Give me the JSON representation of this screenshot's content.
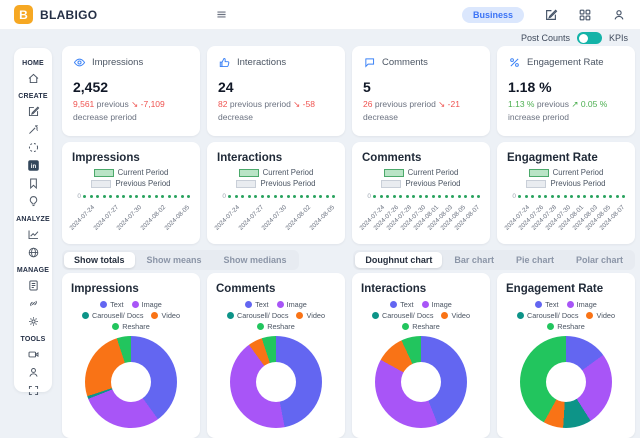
{
  "nav": {
    "logo_letter": "B",
    "brand": "BLABIGO",
    "business_label": "Business"
  },
  "subheader": {
    "left_label": "Post Counts",
    "right_label": "KPIs",
    "toggle_on": true
  },
  "sidebar": {
    "sections": [
      {
        "label": "HOME",
        "icons": [
          "home"
        ]
      },
      {
        "label": "CREATE",
        "icons": [
          "compose",
          "magic-wand",
          "dashed-circle",
          "linkedin",
          "bookmark",
          "lightbulb"
        ]
      },
      {
        "label": "ANALYZE",
        "icons": [
          "line-chart",
          "globe"
        ]
      },
      {
        "label": "MANAGE",
        "icons": [
          "id-card",
          "link",
          "gear"
        ]
      },
      {
        "label": "TOOLS",
        "icons": [
          "video-camera",
          "user",
          "expand"
        ]
      }
    ]
  },
  "colors": {
    "accent_blue": "#3b82f6",
    "negative_red": "#ef5350",
    "positive_green": "#4caf50",
    "toggle_teal": "#14b3a8",
    "logo_orange": "#f6a823"
  },
  "kpis": [
    {
      "title": "Impressions",
      "icon": "eye-icon",
      "value": "2,452",
      "prev_value": "9,561",
      "prev_label": "previous",
      "delta": "↘ -7,109",
      "delta_label": "decrease preriod",
      "trend": "down"
    },
    {
      "title": "Interactions",
      "icon": "thumb-up-icon",
      "value": "24",
      "prev_value": "82",
      "prev_label": "previous preriod",
      "delta": "↘ -58",
      "delta_label": "decrease",
      "trend": "down"
    },
    {
      "title": "Comments",
      "icon": "comments-icon",
      "value": "5",
      "prev_value": "26",
      "prev_label": "previous preriod",
      "delta": "↘ -21",
      "delta_label": "decrease",
      "trend": "down"
    },
    {
      "title": "Engagement Rate",
      "icon": "percent-icon",
      "value": "1.18 %",
      "prev_value": "1.13 %",
      "prev_label": "previous",
      "delta": "↗ 0.05 %",
      "delta_label": "increase preriod",
      "trend": "up"
    }
  ],
  "controls": {
    "left": [
      "Show totals",
      "Show means",
      "Show medians"
    ],
    "left_active": 0,
    "right": [
      "Doughnut chart",
      "Bar chart",
      "Pie chart",
      "Polar chart"
    ],
    "right_active": 0
  },
  "chart_data": [
    {
      "type": "line",
      "title": "Impressions",
      "y_tick": "0",
      "grid": false,
      "legend_position": "top",
      "x_ticks": [
        "2024-07-24",
        "2024-07-27",
        "2024-07-30",
        "2024-08-02",
        "2024-08-05"
      ],
      "dot_color": "#2aa35f",
      "series": [
        {
          "name": "Current Period",
          "fill": "#b9e4c6",
          "border": "#4ca96b",
          "values": [
            0,
            0,
            0,
            0,
            0,
            0,
            0,
            0,
            0,
            0,
            0,
            0,
            0,
            0,
            0,
            0,
            0
          ]
        },
        {
          "name": "Previous Period",
          "fill": "#e9ecf0",
          "border": "#c9cfd8",
          "values": [
            0,
            0,
            0,
            0,
            0,
            0,
            0,
            0,
            0,
            0,
            0,
            0,
            0,
            0,
            0,
            0,
            0
          ]
        }
      ]
    },
    {
      "type": "line",
      "title": "Interactions",
      "y_tick": "0",
      "grid": false,
      "legend_position": "top",
      "x_ticks": [
        "2024-07-24",
        "2024-07-27",
        "2024-07-30",
        "2024-08-02",
        "2024-08-05"
      ],
      "dot_color": "#2aa35f",
      "series": [
        {
          "name": "Current Period",
          "fill": "#b9e4c6",
          "border": "#4ca96b",
          "values": [
            0,
            0,
            0,
            0,
            0,
            0,
            0,
            0,
            0,
            0,
            0,
            0,
            0,
            0,
            0,
            0,
            0
          ]
        },
        {
          "name": "Previous Period",
          "fill": "#e9ecf0",
          "border": "#c9cfd8",
          "values": [
            0,
            0,
            0,
            0,
            0,
            0,
            0,
            0,
            0,
            0,
            0,
            0,
            0,
            0,
            0,
            0,
            0
          ]
        }
      ]
    },
    {
      "type": "line",
      "title": "Comments",
      "y_tick": "0",
      "grid": false,
      "legend_position": "top",
      "x_ticks": [
        "2024-07-24",
        "2024-07-26",
        "2024-07-28",
        "2024-07-30",
        "2024-08-01",
        "2024-08-03",
        "2024-08-05",
        "2024-08-07"
      ],
      "dot_color": "#2aa35f",
      "series": [
        {
          "name": "Current Period",
          "fill": "#b9e4c6",
          "border": "#4ca96b",
          "values": [
            0,
            0,
            0,
            0,
            0,
            0,
            0,
            0,
            0,
            0,
            0,
            0,
            0,
            0,
            0,
            0,
            0
          ]
        },
        {
          "name": "Previous Period",
          "fill": "#e9ecf0",
          "border": "#c9cfd8",
          "values": [
            0,
            0,
            0,
            0,
            0,
            0,
            0,
            0,
            0,
            0,
            0,
            0,
            0,
            0,
            0,
            0,
            0
          ]
        }
      ]
    },
    {
      "type": "line",
      "title": "Engagment Rate",
      "y_tick": "0",
      "grid": false,
      "legend_position": "top",
      "x_ticks": [
        "2024-07-24",
        "2024-07-26",
        "2024-07-28",
        "2024-07-30",
        "2024-08-01",
        "2024-08-03",
        "2024-08-05",
        "2024-08-07"
      ],
      "dot_color": "#2aa35f",
      "series": [
        {
          "name": "Current Period",
          "fill": "#b9e4c6",
          "border": "#4ca96b",
          "values": [
            0,
            0,
            0,
            0,
            0,
            0,
            0,
            0,
            0,
            0,
            0,
            0,
            0,
            0,
            0,
            0,
            0
          ]
        },
        {
          "name": "Previous Period",
          "fill": "#e9ecf0",
          "border": "#c9cfd8",
          "values": [
            0,
            0,
            0,
            0,
            0,
            0,
            0,
            0,
            0,
            0,
            0,
            0,
            0,
            0,
            0,
            0,
            0
          ]
        }
      ]
    },
    {
      "type": "doughnut",
      "title": "Impressions",
      "legend_position": "top",
      "labels": [
        "Text",
        "Image",
        "Carousell/ Docs",
        "Video",
        "Reshare"
      ],
      "colors": [
        "#6366f1",
        "#a855f7",
        "#0d9488",
        "#f97316",
        "#22c55e"
      ],
      "values": [
        40,
        29,
        1,
        25,
        5
      ]
    },
    {
      "type": "doughnut",
      "title": "Comments",
      "legend_position": "top",
      "labels": [
        "Text",
        "Image",
        "Carousell/ Docs",
        "Video",
        "Reshare"
      ],
      "colors": [
        "#6366f1",
        "#a855f7",
        "#0d9488",
        "#f97316",
        "#22c55e"
      ],
      "values": [
        47,
        43,
        0,
        5,
        5
      ]
    },
    {
      "type": "doughnut",
      "title": "Interactions",
      "legend_position": "top",
      "labels": [
        "Text",
        "Image",
        "Carousell/ Docs",
        "Video",
        "Reshare"
      ],
      "colors": [
        "#6366f1",
        "#a855f7",
        "#0d9488",
        "#f97316",
        "#22c55e"
      ],
      "values": [
        44,
        39,
        0,
        10,
        7
      ]
    },
    {
      "type": "doughnut",
      "title": "Engagement Rate",
      "legend_position": "top",
      "labels": [
        "Text",
        "Image",
        "Carousell/ Docs",
        "Video",
        "Reshare"
      ],
      "colors": [
        "#6366f1",
        "#a855f7",
        "#0d9488",
        "#f97316",
        "#22c55e"
      ],
      "values": [
        15,
        26,
        10,
        7,
        42
      ]
    }
  ]
}
